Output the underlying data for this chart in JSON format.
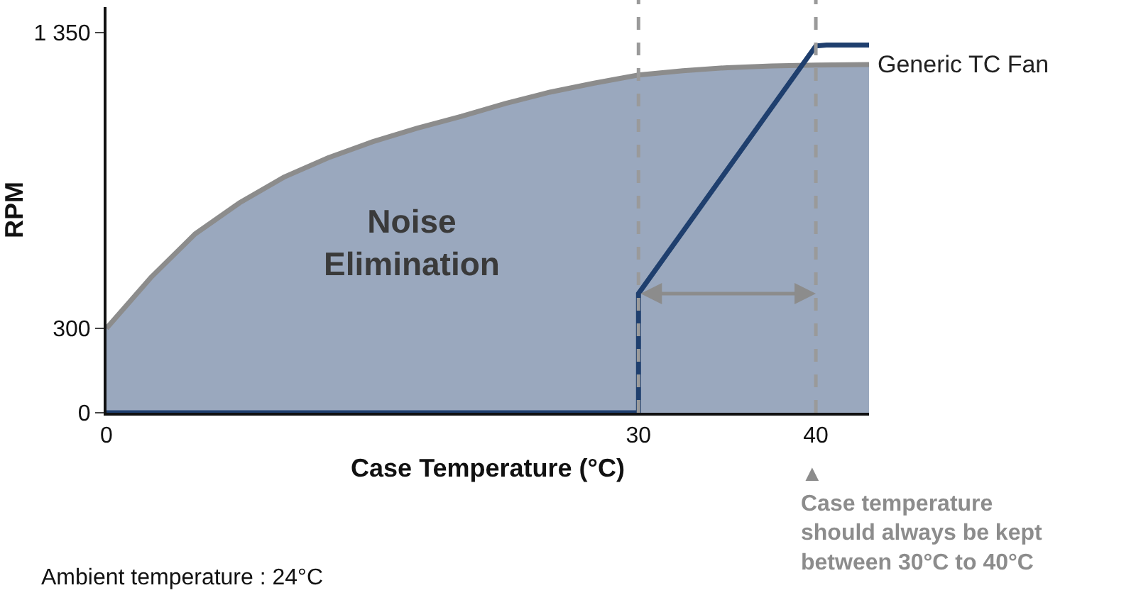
{
  "chart_data": {
    "type": "line",
    "xlabel": "Case Temperature (°C)",
    "ylabel": "RPM",
    "xlim": [
      0,
      43
    ],
    "ylim": [
      0,
      1440
    ],
    "xticks": [
      0,
      30,
      40
    ],
    "yticks": [
      0,
      300,
      {
        "value": 1350,
        "label": "1 350"
      }
    ],
    "grid": false,
    "legend": false,
    "marker": "none",
    "line_style": "solid",
    "series": [
      {
        "name": "Generic TC Fan",
        "type": "area",
        "color": "#8c8c8c",
        "x": [
          0,
          2.5,
          5,
          7.5,
          10,
          12.5,
          15,
          17.5,
          20,
          22.5,
          25,
          27.5,
          30,
          32.5,
          35,
          37.5,
          40,
          43
        ],
        "values": [
          300,
          480,
          635,
          745,
          836,
          905,
          962,
          1010,
          1052,
          1098,
          1138,
          1170,
          1199,
          1214,
          1225,
          1231,
          1234,
          1236
        ]
      },
      {
        "color": "#1f3f6e",
        "x": [
          0,
          30,
          30,
          40,
          40.6,
          43
        ],
        "values": [
          0,
          0,
          423,
          1302,
          1305,
          1305
        ]
      }
    ],
    "ref_lines": [
      {
        "axis": "x",
        "value": 30,
        "color": "#9a9a9a",
        "line_style": "dashed"
      },
      {
        "axis": "x",
        "value": 40,
        "color": "#9a9a9a",
        "line_style": "dashed"
      }
    ],
    "annotations": [
      "Noise\nElimination",
      "Ambient temperature : 24°C",
      {
        "text": "▲\nCase temperature\nshould always be kept\nbetween 30°C to 40°C",
        "x": 40,
        "y": 0
      }
    ]
  }
}
